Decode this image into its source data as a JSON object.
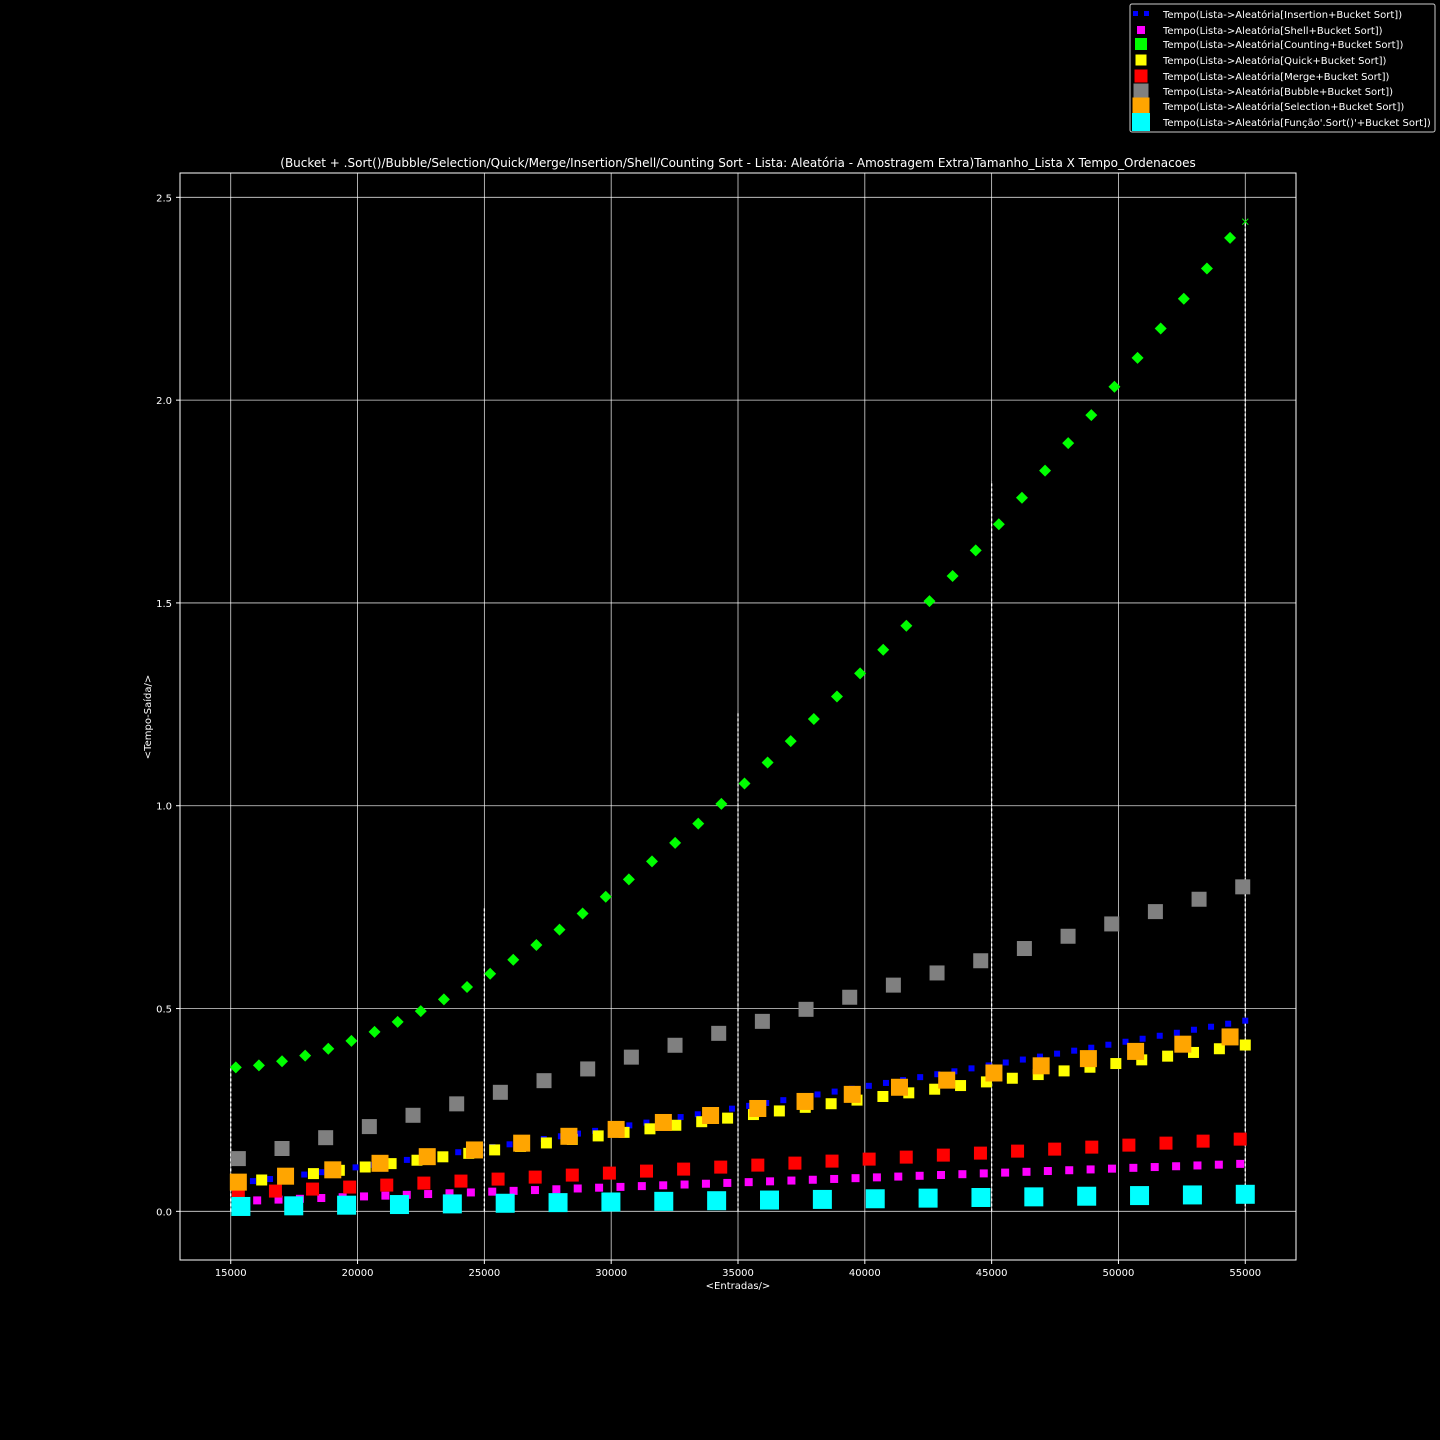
{
  "chart_data": {
    "type": "scatter",
    "title": "(Bucket + .Sort()/Bubble/Selection/Quick/Merge/Insertion/Shell/Counting Sort - Lista: Aleatória - Amostragem Extra)Tamanho_Lista X Tempo_Ordenacoes",
    "xlabel": "<Entradas/>",
    "ylabel": "<Tempo-Saída/>",
    "xlim": [
      13000,
      57000
    ],
    "ylim": [
      -0.12,
      2.56
    ],
    "xticks": [
      "15000",
      "20000",
      "25000",
      "30000",
      "35000",
      "40000",
      "45000",
      "50000",
      "55000"
    ],
    "yticks": [
      "0.0",
      "0.5",
      "1.0",
      "1.5",
      "2.0",
      "2.5"
    ],
    "grid": true,
    "legend_position": "top-right",
    "background": "#000000",
    "series": [
      {
        "name": "Tempo(Lista->Aleatória[Insertion+Bucket Sort])",
        "color": "#0000ff",
        "marker": "square",
        "size": 6,
        "x_start": 15200,
        "x_end": 55000,
        "points": 60,
        "y_start": 0.07,
        "y_end": 0.47,
        "power": 1.1
      },
      {
        "name": "Tempo(Lista->Aleatória[Shell+Bucket Sort])",
        "color": "#ff00ff",
        "marker": "square",
        "size": 8,
        "x_start": 15200,
        "x_end": 54800,
        "points": 48,
        "y_start": 0.025,
        "y_end": 0.117,
        "power": 1.0
      },
      {
        "name": "Tempo(Lista->Aleatória[Counting+Bucket Sort])",
        "color": "#00ff00",
        "marker": "diamond",
        "size": 12,
        "x_start": 15200,
        "x_end": 54400,
        "points": 44,
        "y_start": 0.355,
        "y_end": 2.4,
        "power": 1.6
      },
      {
        "name": "Tempo(Lista->Aleatória[Quick+Bucket Sort])",
        "color": "#ffff00",
        "marker": "square",
        "size": 11,
        "x_start": 15200,
        "x_end": 55000,
        "points": 40,
        "y_start": 0.07,
        "y_end": 0.41,
        "power": 1.05
      },
      {
        "name": "Tempo(Lista->Aleatória[Merge+Bucket Sort])",
        "color": "#ff0000",
        "marker": "square",
        "size": 13,
        "x_start": 15300,
        "x_end": 54800,
        "points": 28,
        "y_start": 0.045,
        "y_end": 0.178,
        "power": 1.0
      },
      {
        "name": "Tempo(Lista->Aleatória[Bubble+Bucket Sort])",
        "color": "#808080",
        "marker": "square",
        "size": 15,
        "x_start": 15300,
        "x_end": 54900,
        "points": 24,
        "y_start": 0.13,
        "y_end": 0.8,
        "power": 1.05
      },
      {
        "name": "Tempo(Lista->Aleatória[Selection+Bucket Sort])",
        "color": "#ffa500",
        "marker": "square",
        "size": 17,
        "x_start": 15300,
        "x_end": 54400,
        "points": 22,
        "y_start": 0.072,
        "y_end": 0.43,
        "power": 1.05
      },
      {
        "name": "Tempo(Lista->Aleatória[Função'.Sort()'+Bucket Sort])",
        "color": "#00ffff",
        "marker": "square",
        "size": 19,
        "x_start": 15400,
        "x_end": 55000,
        "points": 20,
        "y_start": 0.012,
        "y_end": 0.042,
        "power": 1.0
      }
    ],
    "extra_marker": {
      "x": 55000,
      "y": 2.44,
      "color": "#00ff00",
      "marker": "x"
    },
    "dashed_verticals": [
      {
        "x": 15000,
        "y_top": 0.355
      },
      {
        "x": 25000,
        "y_top": 0.75
      },
      {
        "x": 35000,
        "y_top": 1.23
      },
      {
        "x": 45000,
        "y_top": 1.8
      },
      {
        "x": 55000,
        "y_top": 2.44
      }
    ]
  }
}
